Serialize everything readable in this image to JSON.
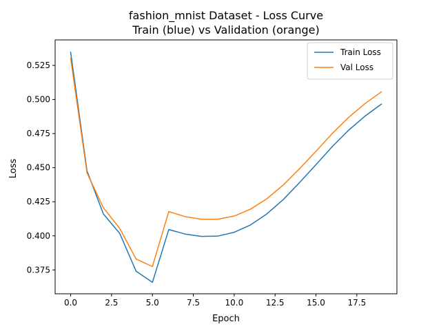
{
  "chart_data": {
    "type": "line",
    "title_line1": "fashion_mnist Dataset - Loss Curve",
    "title_line2": "Train (blue) vs Validation (orange)",
    "xlabel": "Epoch",
    "ylabel": "Loss",
    "xlim": [
      -0.95,
      19.95
    ],
    "ylim": [
      0.3575,
      0.5437
    ],
    "x_ticks": [
      0.0,
      2.5,
      5.0,
      7.5,
      10.0,
      12.5,
      15.0,
      17.5
    ],
    "x_tick_labels": [
      "0.0",
      "2.5",
      "5.0",
      "7.5",
      "10.0",
      "12.5",
      "15.0",
      "17.5"
    ],
    "y_ticks": [
      0.375,
      0.4,
      0.425,
      0.45,
      0.475,
      0.5,
      0.525
    ],
    "y_tick_labels": [
      "0.375",
      "0.400",
      "0.425",
      "0.450",
      "0.475",
      "0.500",
      "0.525"
    ],
    "grid": false,
    "legend_position": "top-right",
    "x": [
      0,
      1,
      2,
      3,
      4,
      5,
      6,
      7,
      8,
      9,
      10,
      11,
      12,
      13,
      14,
      15,
      16,
      17,
      18,
      19
    ],
    "series": [
      {
        "name": "Train Loss",
        "color": "#1f77b4",
        "values": [
          0.5346,
          0.4476,
          0.4161,
          0.4018,
          0.3741,
          0.3659,
          0.4046,
          0.4013,
          0.3996,
          0.3998,
          0.4026,
          0.408,
          0.4161,
          0.4266,
          0.4391,
          0.4522,
          0.4655,
          0.4775,
          0.4878,
          0.4966
        ]
      },
      {
        "name": "Val Loss",
        "color": "#ff7f0e",
        "values": [
          0.5301,
          0.4461,
          0.4206,
          0.4055,
          0.383,
          0.3775,
          0.4178,
          0.4141,
          0.4122,
          0.4122,
          0.4145,
          0.4196,
          0.4272,
          0.4373,
          0.4493,
          0.462,
          0.4751,
          0.4869,
          0.497,
          0.5056
        ]
      }
    ]
  }
}
